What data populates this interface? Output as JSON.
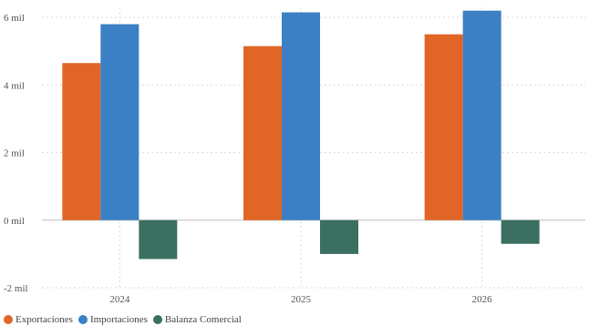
{
  "chart_data": {
    "type": "bar",
    "categories": [
      "2024",
      "2025",
      "2026"
    ],
    "series": [
      {
        "name": "Exportaciones",
        "color": "#e06526",
        "values": [
          4650,
          5150,
          5500
        ]
      },
      {
        "name": "Importaciones",
        "color": "#3b80c4",
        "values": [
          5800,
          6150,
          6200
        ]
      },
      {
        "name": "Balanza Comercial",
        "color": "#3a6f62",
        "values": [
          -1150,
          -1000,
          -700
        ]
      }
    ],
    "yticks": [
      {
        "value": -2000,
        "label": "-2 mil"
      },
      {
        "value": 0,
        "label": "0 mil"
      },
      {
        "value": 2000,
        "label": "2 mil"
      },
      {
        "value": 4000,
        "label": "4 mil"
      },
      {
        "value": 6000,
        "label": "6 mil"
      }
    ],
    "ylim": [
      -2000,
      6300
    ],
    "grid": true,
    "legend_position": "bottom-left"
  }
}
